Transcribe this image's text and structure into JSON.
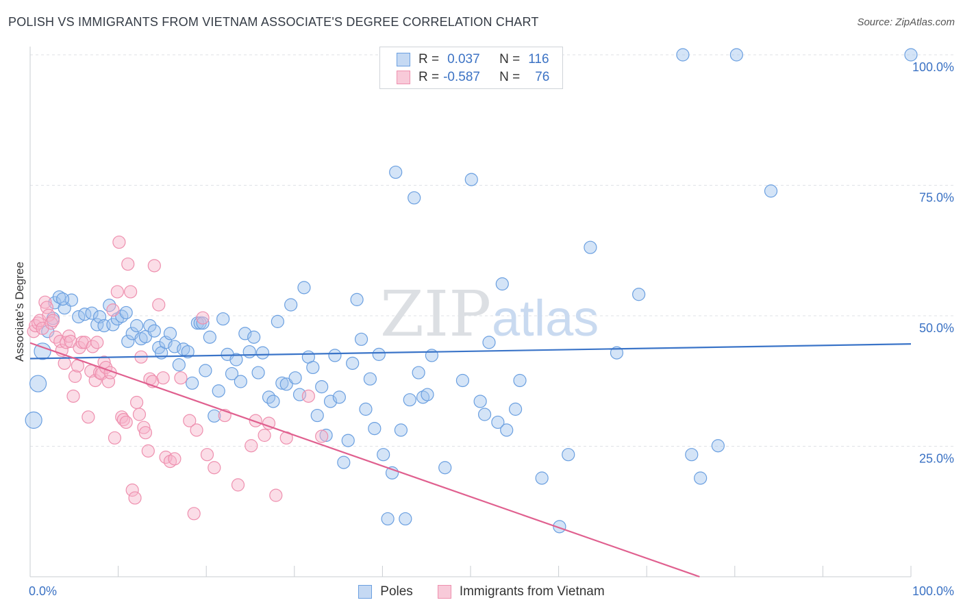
{
  "header": {
    "title": "POLISH VS IMMIGRANTS FROM VIETNAM ASSOCIATE'S DEGREE CORRELATION CHART",
    "source": "Source: ZipAtlas.com"
  },
  "legend": {
    "rows": [
      {
        "r_label": "R =",
        "r_value": "0.037",
        "n_label": "N =",
        "n_value": "116"
      },
      {
        "r_label": "R =",
        "r_value": "-0.587",
        "n_label": "N =",
        "n_value": "76"
      }
    ]
  },
  "watermark": {
    "zip": "ZIP",
    "atlas": "atlas"
  },
  "chart_data": {
    "type": "scatter",
    "title": "POLISH VS IMMIGRANTS FROM VIETNAM ASSOCIATE'S DEGREE CORRELATION CHART",
    "xlabel": "",
    "ylabel": "Associate's Degree",
    "xlim": [
      0,
      100
    ],
    "ylim": [
      0,
      100
    ],
    "x_tick_labels": [
      "0.0%",
      "100.0%"
    ],
    "y_tick_labels": [
      {
        "value": 25,
        "label": "25.0%"
      },
      {
        "value": 50,
        "label": "50.0%"
      },
      {
        "value": 75,
        "label": "75.0%"
      },
      {
        "value": 100,
        "label": "100.0%"
      }
    ],
    "grid": true,
    "legend_position": "top-center",
    "series": [
      {
        "name": "Poles",
        "color": "#6a9fe0",
        "trend": {
          "x": [
            0,
            100
          ],
          "y": [
            41.8,
            44.6
          ],
          "color": "#3a74c8"
        },
        "points": [
          [
            0.4,
            30.0
          ],
          [
            0.9,
            37.0
          ],
          [
            1.4,
            43.2
          ],
          [
            2.0,
            47.0
          ],
          [
            2.6,
            49.5
          ],
          [
            2.8,
            52.5
          ],
          [
            3.3,
            53.6
          ],
          [
            3.9,
            51.5
          ],
          [
            4.7,
            53.0
          ],
          [
            5.5,
            49.8
          ],
          [
            6.2,
            50.3
          ],
          [
            7.0,
            50.5
          ],
          [
            7.6,
            48.3
          ],
          [
            7.9,
            49.8
          ],
          [
            8.4,
            48.1
          ],
          [
            9.0,
            52.0
          ],
          [
            9.4,
            48.3
          ],
          [
            9.9,
            49.4
          ],
          [
            10.4,
            49.9
          ],
          [
            10.9,
            50.6
          ],
          [
            11.1,
            45.1
          ],
          [
            11.6,
            46.6
          ],
          [
            12.1,
            48.1
          ],
          [
            12.6,
            45.6
          ],
          [
            13.1,
            46.0
          ],
          [
            13.6,
            48.1
          ],
          [
            14.1,
            47.1
          ],
          [
            14.6,
            43.9
          ],
          [
            14.9,
            42.9
          ],
          [
            15.4,
            44.9
          ],
          [
            15.9,
            46.6
          ],
          [
            16.4,
            44.1
          ],
          [
            16.9,
            40.6
          ],
          [
            17.4,
            43.6
          ],
          [
            17.9,
            43.1
          ],
          [
            18.4,
            37.1
          ],
          [
            19.0,
            48.6
          ],
          [
            19.3,
            48.6
          ],
          [
            19.6,
            48.6
          ],
          [
            19.9,
            39.5
          ],
          [
            20.4,
            45.9
          ],
          [
            20.9,
            30.8
          ],
          [
            21.4,
            35.6
          ],
          [
            21.9,
            49.4
          ],
          [
            22.4,
            42.6
          ],
          [
            22.9,
            38.9
          ],
          [
            23.4,
            41.6
          ],
          [
            23.9,
            37.4
          ],
          [
            24.4,
            46.6
          ],
          [
            24.9,
            43.1
          ],
          [
            25.4,
            45.9
          ],
          [
            25.9,
            39.1
          ],
          [
            26.4,
            42.9
          ],
          [
            27.1,
            34.4
          ],
          [
            27.6,
            33.6
          ],
          [
            28.1,
            48.9
          ],
          [
            28.6,
            37.1
          ],
          [
            29.1,
            36.9
          ],
          [
            29.6,
            52.1
          ],
          [
            30.1,
            38.1
          ],
          [
            30.6,
            34.9
          ],
          [
            31.1,
            55.4
          ],
          [
            31.6,
            42.1
          ],
          [
            32.1,
            40.1
          ],
          [
            32.6,
            30.9
          ],
          [
            33.1,
            36.4
          ],
          [
            33.6,
            27.1
          ],
          [
            34.1,
            33.6
          ],
          [
            34.6,
            42.4
          ],
          [
            35.1,
            34.4
          ],
          [
            35.6,
            21.9
          ],
          [
            36.1,
            26.1
          ],
          [
            36.6,
            40.9
          ],
          [
            37.1,
            53.1
          ],
          [
            37.6,
            45.5
          ],
          [
            38.1,
            32.1
          ],
          [
            38.6,
            37.9
          ],
          [
            39.1,
            28.4
          ],
          [
            39.6,
            42.6
          ],
          [
            40.1,
            23.4
          ],
          [
            40.6,
            11.1
          ],
          [
            41.1,
            19.9
          ],
          [
            41.5,
            77.5
          ],
          [
            42.1,
            28.1
          ],
          [
            42.6,
            11.1
          ],
          [
            43.1,
            33.9
          ],
          [
            43.6,
            72.6
          ],
          [
            44.1,
            39.1
          ],
          [
            44.6,
            34.4
          ],
          [
            45.1,
            34.9
          ],
          [
            45.6,
            42.4
          ],
          [
            47.1,
            20.9
          ],
          [
            49.1,
            37.6
          ],
          [
            50.1,
            76.1
          ],
          [
            51.1,
            33.6
          ],
          [
            51.6,
            31.1
          ],
          [
            52.1,
            44.9
          ],
          [
            53.1,
            29.6
          ],
          [
            53.6,
            56.1
          ],
          [
            54.1,
            28.1
          ],
          [
            55.1,
            32.1
          ],
          [
            55.6,
            37.6
          ],
          [
            58.1,
            18.9
          ],
          [
            60.1,
            9.6
          ],
          [
            61.1,
            23.4
          ],
          [
            63.6,
            63.1
          ],
          [
            66.6,
            42.9
          ],
          [
            69.1,
            54.1
          ],
          [
            74.1,
            100
          ],
          [
            75.1,
            23.4
          ],
          [
            76.1,
            18.9
          ],
          [
            78.1,
            25.1
          ],
          [
            80.2,
            100
          ],
          [
            84.1,
            73.9
          ],
          [
            100,
            100
          ],
          [
            3.7,
            53.2
          ]
        ]
      },
      {
        "name": "Immigrants from Vietnam",
        "color": "#ee8fae",
        "trend": {
          "x": [
            0,
            76
          ],
          "y": [
            44.8,
            0.0
          ],
          "color": "#e0608f"
        },
        "points": [
          [
            0.4,
            47.0
          ],
          [
            0.6,
            48.1
          ],
          [
            0.9,
            48.6
          ],
          [
            1.1,
            49.1
          ],
          [
            1.4,
            47.6
          ],
          [
            1.7,
            52.6
          ],
          [
            1.9,
            51.6
          ],
          [
            2.1,
            50.1
          ],
          [
            2.4,
            48.6
          ],
          [
            2.6,
            49.1
          ],
          [
            2.9,
            45.9
          ],
          [
            3.4,
            45.1
          ],
          [
            3.6,
            43.4
          ],
          [
            3.9,
            40.9
          ],
          [
            4.1,
            44.9
          ],
          [
            4.4,
            46.1
          ],
          [
            4.6,
            45.1
          ],
          [
            4.9,
            34.6
          ],
          [
            5.1,
            38.4
          ],
          [
            5.4,
            40.4
          ],
          [
            5.6,
            43.9
          ],
          [
            5.9,
            44.9
          ],
          [
            6.2,
            44.9
          ],
          [
            6.6,
            30.6
          ],
          [
            6.9,
            39.4
          ],
          [
            7.1,
            44.1
          ],
          [
            7.4,
            37.6
          ],
          [
            7.6,
            44.9
          ],
          [
            7.9,
            39.1
          ],
          [
            8.1,
            38.9
          ],
          [
            8.4,
            41.1
          ],
          [
            8.6,
            40.1
          ],
          [
            8.9,
            37.4
          ],
          [
            9.1,
            39.1
          ],
          [
            9.4,
            51.1
          ],
          [
            9.6,
            26.6
          ],
          [
            9.9,
            54.6
          ],
          [
            10.1,
            64.1
          ],
          [
            10.4,
            30.6
          ],
          [
            10.6,
            30.1
          ],
          [
            10.9,
            29.6
          ],
          [
            11.1,
            59.9
          ],
          [
            11.4,
            54.6
          ],
          [
            11.6,
            16.6
          ],
          [
            11.9,
            15.1
          ],
          [
            12.1,
            33.4
          ],
          [
            12.4,
            31.1
          ],
          [
            12.6,
            42.1
          ],
          [
            12.9,
            28.6
          ],
          [
            13.1,
            27.6
          ],
          [
            13.4,
            24.1
          ],
          [
            13.6,
            37.9
          ],
          [
            13.9,
            37.4
          ],
          [
            14.1,
            59.6
          ],
          [
            14.6,
            52.1
          ],
          [
            15.1,
            38.1
          ],
          [
            15.4,
            22.9
          ],
          [
            15.9,
            22.1
          ],
          [
            16.4,
            22.6
          ],
          [
            17.1,
            38.1
          ],
          [
            18.1,
            29.9
          ],
          [
            18.6,
            12.1
          ],
          [
            18.9,
            28.1
          ],
          [
            19.6,
            49.6
          ],
          [
            20.1,
            23.4
          ],
          [
            20.9,
            20.9
          ],
          [
            22.1,
            30.9
          ],
          [
            23.6,
            17.6
          ],
          [
            25.1,
            25.1
          ],
          [
            25.6,
            29.9
          ],
          [
            26.6,
            27.1
          ],
          [
            27.1,
            29.4
          ],
          [
            27.9,
            15.6
          ],
          [
            29.1,
            26.6
          ],
          [
            31.6,
            34.6
          ],
          [
            33.1,
            26.9
          ]
        ]
      }
    ]
  },
  "bottom_legend": {
    "items": [
      {
        "label": "Poles"
      },
      {
        "label": "Immigrants from Vietnam"
      }
    ]
  }
}
